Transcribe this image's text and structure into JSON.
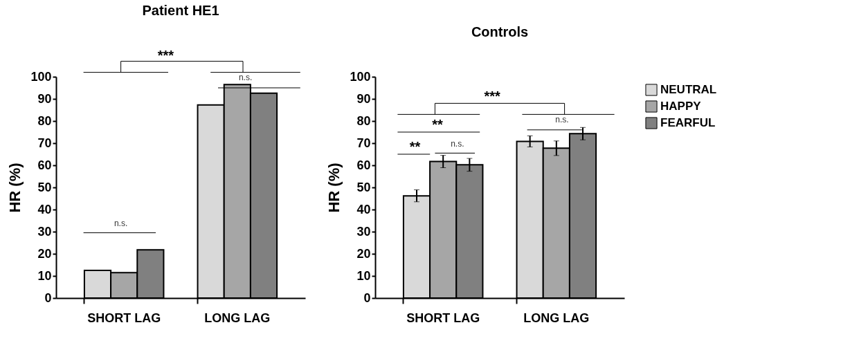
{
  "chart_data": [
    {
      "type": "bar",
      "title": "Patient HE1",
      "ylabel": "HR (%)",
      "categories": [
        "SHORT LAG",
        "LONG LAG"
      ],
      "ylim": [
        0,
        100
      ],
      "yticks": [
        0,
        10,
        20,
        30,
        40,
        50,
        60,
        70,
        80,
        90,
        100
      ],
      "grid": false,
      "legend": "right",
      "series": [
        {
          "name": "NEUTRAL",
          "color": "#d9d9d9",
          "values": [
            12.5,
            87.3
          ]
        },
        {
          "name": "HAPPY",
          "color": "#a6a6a6",
          "values": [
            11.5,
            96.5
          ]
        },
        {
          "name": "FEARFUL",
          "color": "#808080",
          "values": [
            21.8,
            92.6
          ]
        }
      ],
      "annotations": [
        "***",
        "n.s.",
        "n.s."
      ]
    },
    {
      "type": "bar",
      "title": "Controls",
      "ylabel": "HR (%)",
      "categories": [
        "SHORT LAG",
        "LONG LAG"
      ],
      "ylim": [
        0,
        100
      ],
      "yticks": [
        0,
        10,
        20,
        30,
        40,
        50,
        60,
        70,
        80,
        90,
        100
      ],
      "grid": false,
      "legend": false,
      "series": [
        {
          "name": "NEUTRAL",
          "color": "#d9d9d9",
          "values": [
            46.2,
            70.8
          ],
          "errors": [
            2.7,
            2.5
          ]
        },
        {
          "name": "HAPPY",
          "color": "#a6a6a6",
          "values": [
            61.7,
            67.7
          ],
          "errors": [
            2.8,
            3.3
          ]
        },
        {
          "name": "FEARFUL",
          "color": "#808080",
          "values": [
            60.2,
            74.3
          ],
          "errors": [
            2.9,
            2.8
          ]
        }
      ],
      "annotations": [
        "***",
        "**",
        "**",
        "n.s.",
        "n.s."
      ]
    }
  ]
}
